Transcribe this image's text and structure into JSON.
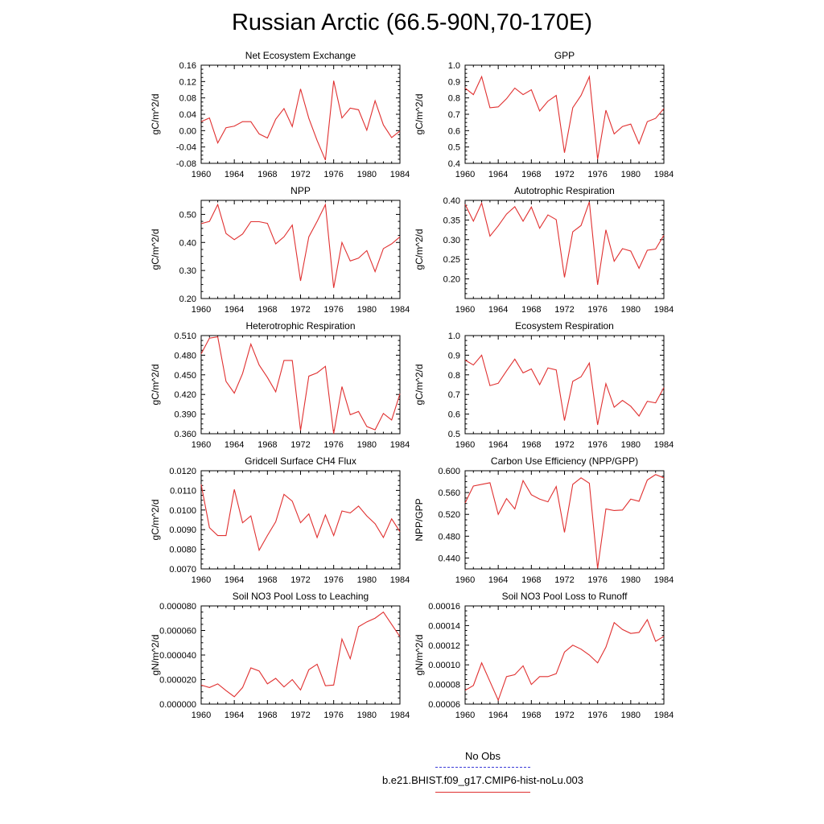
{
  "title": "Russian Arctic (66.5-90N,70-170E)",
  "legend": {
    "obs_label": "No Obs",
    "obs_color": "#3a3ad8",
    "run_label": "b.e21.BHIST.f09_g17.CMIP6-hist-noLu.003",
    "run_color": "#e03030"
  },
  "chart_data": [
    {
      "type": "line",
      "title": "Net Ecosystem Exchange",
      "ylabel": "gC/m^2/d",
      "xlim": [
        1960,
        1984
      ],
      "ylim": [
        -0.08,
        0.16
      ],
      "yticks": [
        "-0.08",
        "-0.04",
        "0.00",
        "0.04",
        "0.08",
        "0.12",
        "0.16"
      ],
      "xticks": [
        "1960",
        "1964",
        "1968",
        "1972",
        "1976",
        "1980",
        "1984"
      ],
      "x": [
        1960,
        1961,
        1962,
        1963,
        1964,
        1965,
        1966,
        1967,
        1968,
        1969,
        1970,
        1971,
        1972,
        1973,
        1974,
        1975,
        1976,
        1977,
        1978,
        1979,
        1980,
        1981,
        1982,
        1983,
        1984
      ],
      "values": [
        0.022,
        0.031,
        -0.03,
        0.007,
        0.011,
        0.022,
        0.022,
        -0.008,
        -0.018,
        0.028,
        0.054,
        0.01,
        0.102,
        0.03,
        -0.024,
        -0.072,
        0.122,
        0.031,
        0.055,
        0.051,
        0.001,
        0.073,
        0.014,
        -0.017,
        -0.001
      ]
    },
    {
      "type": "line",
      "title": "GPP",
      "ylabel": "gC/m^2/d",
      "xlim": [
        1960,
        1984
      ],
      "ylim": [
        0.4,
        1.0
      ],
      "yticks": [
        "0.4",
        "0.5",
        "0.6",
        "0.7",
        "0.8",
        "0.9",
        "1.0"
      ],
      "xticks": [
        "1960",
        "1964",
        "1968",
        "1972",
        "1976",
        "1980",
        "1984"
      ],
      "x": [
        1960,
        1961,
        1962,
        1963,
        1964,
        1965,
        1966,
        1967,
        1968,
        1969,
        1970,
        1971,
        1972,
        1973,
        1974,
        1975,
        1976,
        1977,
        1978,
        1979,
        1980,
        1981,
        1982,
        1983,
        1984
      ],
      "values": [
        0.86,
        0.82,
        0.93,
        0.74,
        0.745,
        0.795,
        0.86,
        0.82,
        0.85,
        0.72,
        0.78,
        0.815,
        0.465,
        0.74,
        0.815,
        0.93,
        0.425,
        0.725,
        0.58,
        0.625,
        0.64,
        0.52,
        0.655,
        0.675,
        0.735
      ]
    },
    {
      "type": "line",
      "title": "NPP",
      "ylabel": "gC/m^2/d",
      "xlim": [
        1960,
        1984
      ],
      "ylim": [
        0.2,
        0.55
      ],
      "yticks": [
        "0.20",
        "0.30",
        "0.40",
        "0.50"
      ],
      "xticks": [
        "1960",
        "1964",
        "1968",
        "1972",
        "1976",
        "1980",
        "1984"
      ],
      "x": [
        1960,
        1961,
        1962,
        1963,
        1964,
        1965,
        1966,
        1967,
        1968,
        1969,
        1970,
        1971,
        1972,
        1973,
        1974,
        1975,
        1976,
        1977,
        1978,
        1979,
        1980,
        1981,
        1982,
        1983,
        1984
      ],
      "values": [
        0.467,
        0.475,
        0.535,
        0.432,
        0.41,
        0.43,
        0.474,
        0.474,
        0.468,
        0.395,
        0.42,
        0.462,
        0.263,
        0.42,
        0.475,
        0.535,
        0.238,
        0.4,
        0.334,
        0.344,
        0.371,
        0.296,
        0.378,
        0.395,
        0.42
      ]
    },
    {
      "type": "line",
      "title": "Autotrophic Respiration",
      "ylabel": "gC/m^2/d",
      "xlim": [
        1960,
        1984
      ],
      "ylim": [
        0.15,
        0.4
      ],
      "yticks": [
        "0.20",
        "0.25",
        "0.30",
        "0.35",
        "0.40"
      ],
      "xticks": [
        "1960",
        "1964",
        "1968",
        "1972",
        "1976",
        "1980",
        "1984"
      ],
      "x": [
        1960,
        1961,
        1962,
        1963,
        1964,
        1965,
        1966,
        1967,
        1968,
        1969,
        1970,
        1971,
        1972,
        1973,
        1974,
        1975,
        1976,
        1977,
        1978,
        1979,
        1980,
        1981,
        1982,
        1983,
        1984
      ],
      "values": [
        0.39,
        0.347,
        0.393,
        0.309,
        0.335,
        0.365,
        0.384,
        0.347,
        0.383,
        0.329,
        0.363,
        0.351,
        0.204,
        0.32,
        0.336,
        0.396,
        0.185,
        0.325,
        0.245,
        0.277,
        0.271,
        0.227,
        0.273,
        0.276,
        0.311
      ]
    },
    {
      "type": "line",
      "title": "Heterotrophic Respiration",
      "ylabel": "gC/m^2/d",
      "xlim": [
        1960,
        1984
      ],
      "ylim": [
        0.36,
        0.51
      ],
      "yticks": [
        "0.360",
        "0.390",
        "0.420",
        "0.450",
        "0.480",
        "0.510"
      ],
      "xticks": [
        "1960",
        "1964",
        "1968",
        "1972",
        "1976",
        "1980",
        "1984"
      ],
      "x": [
        1960,
        1961,
        1962,
        1963,
        1964,
        1965,
        1966,
        1967,
        1968,
        1969,
        1970,
        1971,
        1972,
        1973,
        1974,
        1975,
        1976,
        1977,
        1978,
        1979,
        1980,
        1981,
        1982,
        1983,
        1984
      ],
      "values": [
        0.482,
        0.506,
        0.508,
        0.44,
        0.422,
        0.452,
        0.497,
        0.465,
        0.446,
        0.424,
        0.472,
        0.472,
        0.365,
        0.448,
        0.453,
        0.463,
        0.36,
        0.432,
        0.389,
        0.394,
        0.371,
        0.366,
        0.391,
        0.381,
        0.421
      ]
    },
    {
      "type": "line",
      "title": "Ecosystem Respiration",
      "ylabel": "gC/m^2/d",
      "xlim": [
        1960,
        1984
      ],
      "ylim": [
        0.5,
        1.0
      ],
      "yticks": [
        "0.5",
        "0.6",
        "0.7",
        "0.8",
        "0.9",
        "1.0"
      ],
      "xticks": [
        "1960",
        "1964",
        "1968",
        "1972",
        "1976",
        "1980",
        "1984"
      ],
      "x": [
        1960,
        1961,
        1962,
        1963,
        1964,
        1965,
        1966,
        1967,
        1968,
        1969,
        1970,
        1971,
        1972,
        1973,
        1974,
        1975,
        1976,
        1977,
        1978,
        1979,
        1980,
        1981,
        1982,
        1983,
        1984
      ],
      "values": [
        0.875,
        0.85,
        0.9,
        0.745,
        0.757,
        0.82,
        0.88,
        0.81,
        0.83,
        0.75,
        0.835,
        0.825,
        0.567,
        0.767,
        0.79,
        0.86,
        0.545,
        0.755,
        0.635,
        0.67,
        0.64,
        0.59,
        0.665,
        0.657,
        0.735
      ]
    },
    {
      "type": "line",
      "title": "Gridcell Surface CH4 Flux",
      "ylabel": "gC/m^2/d",
      "xlim": [
        1960,
        1984
      ],
      "ylim": [
        0.007,
        0.012
      ],
      "yticks": [
        "0.0070",
        "0.0080",
        "0.0090",
        "0.0100",
        "0.0110",
        "0.0120"
      ],
      "xticks": [
        "1960",
        "1964",
        "1968",
        "1972",
        "1976",
        "1980",
        "1984"
      ],
      "x": [
        1960,
        1961,
        1962,
        1963,
        1964,
        1965,
        1966,
        1967,
        1968,
        1969,
        1970,
        1971,
        1972,
        1973,
        1974,
        1975,
        1976,
        1977,
        1978,
        1979,
        1980,
        1981,
        1982,
        1983,
        1984
      ],
      "values": [
        0.0113,
        0.0091,
        0.0087,
        0.0087,
        0.01105,
        0.00935,
        0.0097,
        0.00795,
        0.0087,
        0.0094,
        0.0108,
        0.01045,
        0.00935,
        0.0098,
        0.0086,
        0.00975,
        0.0087,
        0.00995,
        0.00985,
        0.0102,
        0.0097,
        0.0093,
        0.0086,
        0.00955,
        0.0089
      ]
    },
    {
      "type": "line",
      "title": "Carbon Use Efficiency (NPP/GPP)",
      "ylabel": "NPP/GPP",
      "xlim": [
        1960,
        1984
      ],
      "ylim": [
        0.42,
        0.6
      ],
      "yticks": [
        "0.440",
        "0.480",
        "0.520",
        "0.560",
        "0.600"
      ],
      "xticks": [
        "1960",
        "1964",
        "1968",
        "1972",
        "1976",
        "1980",
        "1984"
      ],
      "x": [
        1960,
        1961,
        1962,
        1963,
        1964,
        1965,
        1966,
        1967,
        1968,
        1969,
        1970,
        1971,
        1972,
        1973,
        1974,
        1975,
        1976,
        1977,
        1978,
        1979,
        1980,
        1981,
        1982,
        1983,
        1984
      ],
      "values": [
        0.541,
        0.572,
        0.575,
        0.578,
        0.52,
        0.549,
        0.53,
        0.582,
        0.556,
        0.548,
        0.543,
        0.571,
        0.487,
        0.575,
        0.587,
        0.577,
        0.421,
        0.53,
        0.527,
        0.528,
        0.548,
        0.544,
        0.583,
        0.593,
        0.587
      ]
    },
    {
      "type": "line",
      "title": "Soil NO3 Pool Loss to Leaching",
      "ylabel": "gN/m^2/d",
      "xlim": [
        1960,
        1984
      ],
      "ylim": [
        0.0,
        8e-05
      ],
      "yticks": [
        "0.000000",
        "0.000020",
        "0.000040",
        "0.000060",
        "0.000080"
      ],
      "xticks": [
        "1960",
        "1964",
        "1968",
        "1972",
        "1976",
        "1980",
        "1984"
      ],
      "x": [
        1960,
        1961,
        1962,
        1963,
        1964,
        1965,
        1966,
        1967,
        1968,
        1969,
        1970,
        1971,
        1972,
        1973,
        1974,
        1975,
        1976,
        1977,
        1978,
        1979,
        1980,
        1981,
        1982,
        1983,
        1984
      ],
      "values": [
        1.55e-05,
        1.35e-05,
        1.65e-05,
        1.1e-05,
        6e-06,
        1.35e-05,
        2.95e-05,
        2.7e-05,
        1.65e-05,
        2.1e-05,
        1.4e-05,
        2e-05,
        1.15e-05,
        2.8e-05,
        3.25e-05,
        1.5e-05,
        1.55e-05,
        5.3e-05,
        3.7e-05,
        6.3e-05,
        6.7e-05,
        7e-05,
        7.5e-05,
        6.5e-05,
        5.5e-05
      ]
    },
    {
      "type": "line",
      "title": "Soil NO3 Pool Loss to Runoff",
      "ylabel": "gN/m^2/d",
      "xlim": [
        1960,
        1984
      ],
      "ylim": [
        6e-05,
        0.00016
      ],
      "yticks": [
        "0.00006",
        "0.00008",
        "0.00010",
        "0.00012",
        "0.00014",
        "0.00016"
      ],
      "xticks": [
        "1960",
        "1964",
        "1968",
        "1972",
        "1976",
        "1980",
        "1984"
      ],
      "x": [
        1960,
        1961,
        1962,
        1963,
        1964,
        1965,
        1966,
        1967,
        1968,
        1969,
        1970,
        1971,
        1972,
        1973,
        1974,
        1975,
        1976,
        1977,
        1978,
        1979,
        1980,
        1981,
        1982,
        1983,
        1984
      ],
      "values": [
        7.4e-05,
        7.9e-05,
        0.000102,
        8.3e-05,
        6.4e-05,
        8.8e-05,
        9e-05,
        9.9e-05,
        8e-05,
        8.8e-05,
        8.8e-05,
        9.1e-05,
        0.000113,
        0.00012,
        0.000116,
        0.00011,
        0.000102,
        0.000118,
        0.000143,
        0.000136,
        0.000132,
        0.000133,
        0.000146,
        0.000124,
        0.000129
      ]
    }
  ]
}
